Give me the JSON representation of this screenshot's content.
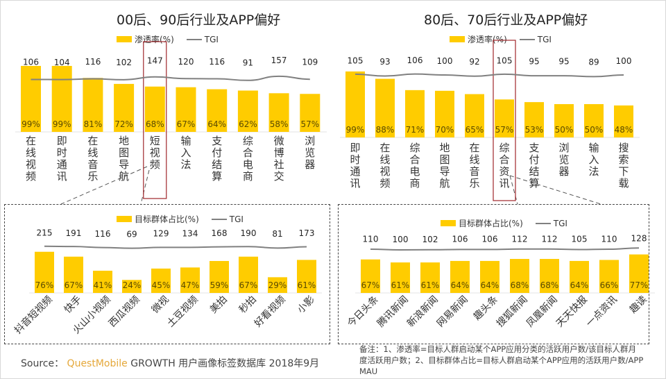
{
  "charts": {
    "top_left": {
      "title": "00后、90后行业及APP偏好",
      "legend_bar": "渗透率(%)",
      "legend_line": "TGI"
    },
    "top_right": {
      "title": "80后、70后行业及APP偏好",
      "legend_bar": "渗透率(%)",
      "legend_line": "TGI"
    },
    "bottom_left": {
      "legend_bar": "目标群体占比(%)",
      "legend_line": "TGI"
    },
    "bottom_right": {
      "legend_bar": "目标群体占比(%)",
      "legend_line": "TGI"
    }
  },
  "colors": {
    "bar": "#FFCC00",
    "tgi_line": "#808080",
    "highlight_box": "#A0262A",
    "brand": "#E5A83A"
  },
  "footer": {
    "source_label": "Source：",
    "source_brand": "QuestMobile",
    "source_rest": "GROWTH 用户画像标签数据库 2018年9月",
    "note": "备注：1、渗透率=目标人群启动某个APP应用分类的活跃用户数/该目标人群月度活跃用户数；2、目标群体占比=目标人群启动某个APP应用的活跃用户数/APP MAU"
  },
  "chart_data": [
    {
      "type": "bar",
      "title": "00后、90后行业及APP偏好",
      "categories": [
        "在线视频",
        "即时通讯",
        "在线音乐",
        "地图导航",
        "短视频",
        "输入法",
        "支付结算",
        "综合电商",
        "微博社交",
        "浏览器"
      ],
      "series": [
        {
          "name": "渗透率(%)",
          "type": "bar",
          "values": [
            99,
            99,
            81,
            72,
            68,
            67,
            64,
            62,
            58,
            57
          ]
        },
        {
          "name": "TGI",
          "type": "line",
          "values": [
            106,
            104,
            116,
            102,
            147,
            120,
            116,
            91,
            157,
            109
          ]
        }
      ],
      "highlight": "短视频",
      "legend_position": "top"
    },
    {
      "type": "bar",
      "title": "80后、70后行业及APP偏好",
      "categories": [
        "即时通讯",
        "在线视频",
        "综合电商",
        "地图导航",
        "在线音乐",
        "综合资讯",
        "支付结算",
        "浏览器",
        "输入法",
        "搜索下载"
      ],
      "series": [
        {
          "name": "渗透率(%)",
          "type": "bar",
          "values": [
            99,
            88,
            71,
            70,
            65,
            57,
            53,
            50,
            50,
            48
          ]
        },
        {
          "name": "TGI",
          "type": "line",
          "values": [
            105,
            93,
            106,
            100,
            92,
            105,
            95,
            95,
            89,
            100
          ]
        }
      ],
      "highlight": "综合资讯",
      "legend_position": "top"
    },
    {
      "type": "bar",
      "title": "",
      "categories": [
        "抖音短视频",
        "快手",
        "火山小视频",
        "西瓜视频",
        "微视",
        "土豆视频",
        "美拍",
        "秒拍",
        "好看视频",
        "小影"
      ],
      "series": [
        {
          "name": "目标群体占比(%)",
          "type": "bar",
          "values": [
            76,
            67,
            41,
            24,
            45,
            47,
            59,
            67,
            29,
            61
          ]
        },
        {
          "name": "TGI",
          "type": "line",
          "values": [
            215,
            191,
            116,
            69,
            129,
            134,
            168,
            190,
            81,
            173
          ]
        }
      ],
      "legend_position": "top"
    },
    {
      "type": "bar",
      "title": "",
      "categories": [
        "今日头条",
        "腾讯新闻",
        "新浪新闻",
        "网易新闻",
        "趣头条",
        "搜狐新闻",
        "凤凰新闻",
        "天天快报",
        "一点资讯",
        "趣读"
      ],
      "series": [
        {
          "name": "目标群体占比(%)",
          "type": "bar",
          "values": [
            67,
            61,
            61,
            64,
            64,
            68,
            68,
            64,
            66,
            77
          ]
        },
        {
          "name": "TGI",
          "type": "line",
          "values": [
            110,
            100,
            102,
            106,
            106,
            112,
            112,
            105,
            110,
            128
          ]
        }
      ],
      "legend_position": "top"
    }
  ]
}
